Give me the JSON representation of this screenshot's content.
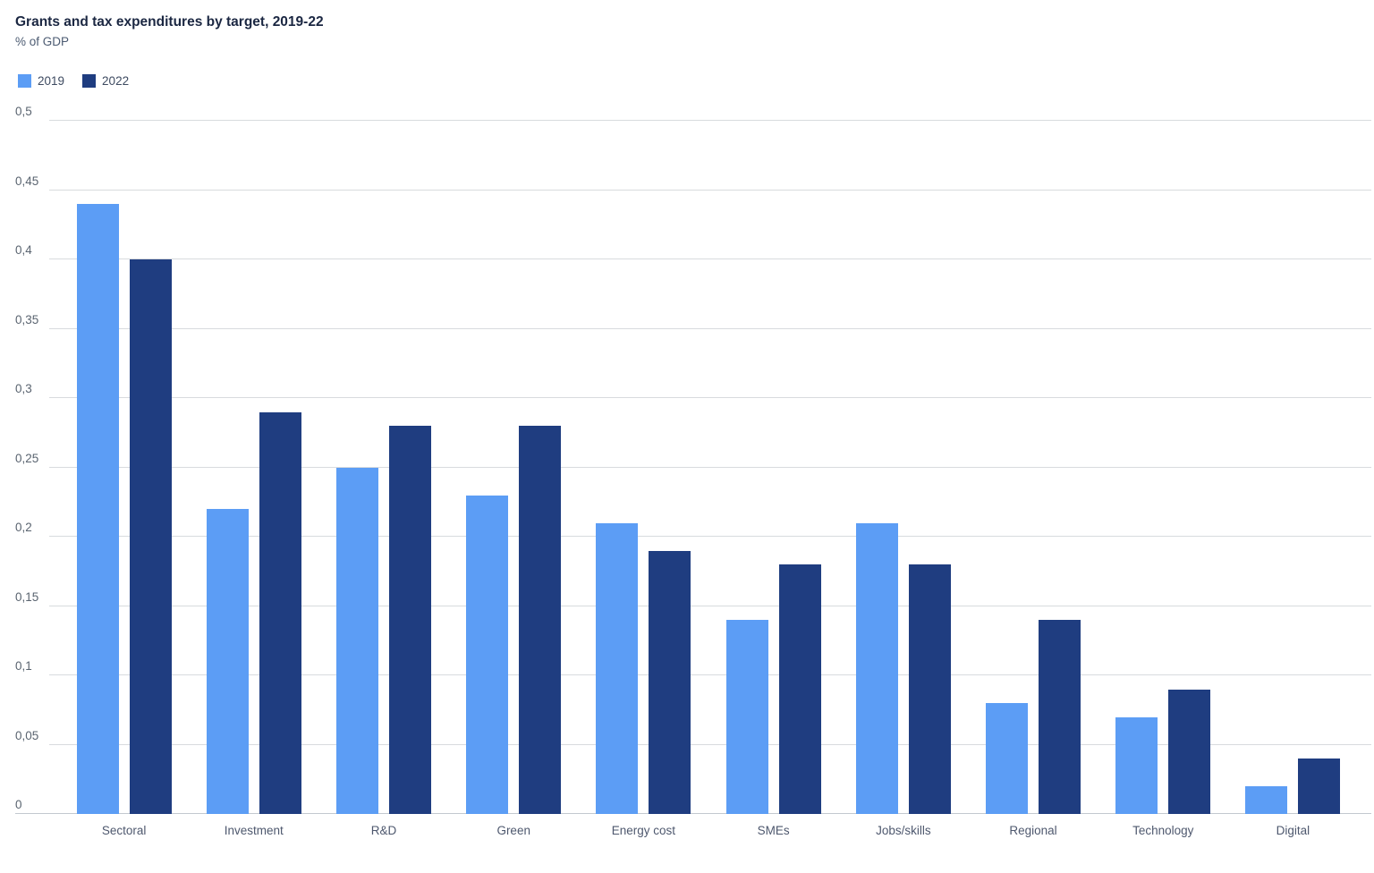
{
  "header": {
    "title": "Grants and tax expenditures by target, 2019-22",
    "subtitle": "% of GDP"
  },
  "legend": [
    {
      "label": "2019",
      "color": "#5C9DF5"
    },
    {
      "label": "2022",
      "color": "#1F3D80"
    }
  ],
  "chart_data": {
    "type": "bar",
    "title": "Grants and tax expenditures by target, 2019-22",
    "ylabel": "% of GDP",
    "xlabel": "",
    "categories": [
      "Sectoral",
      "Investment",
      "R&D",
      "Green",
      "Energy cost",
      "SMEs",
      "Jobs/skills",
      "Regional",
      "Technology",
      "Digital"
    ],
    "series": [
      {
        "name": "2019",
        "color": "#5C9DF5",
        "values": [
          0.44,
          0.22,
          0.25,
          0.23,
          0.21,
          0.14,
          0.21,
          0.08,
          0.07,
          0.02
        ]
      },
      {
        "name": "2022",
        "color": "#1F3D80",
        "values": [
          0.4,
          0.29,
          0.28,
          0.28,
          0.19,
          0.18,
          0.18,
          0.14,
          0.09,
          0.04
        ]
      }
    ],
    "ylim": [
      0,
      0.5
    ],
    "yticks": [
      {
        "label": "0",
        "value": 0
      },
      {
        "label": "0,05",
        "value": 0.05
      },
      {
        "label": "0,1",
        "value": 0.1
      },
      {
        "label": "0,15",
        "value": 0.15
      },
      {
        "label": "0,2",
        "value": 0.2
      },
      {
        "label": "0,25",
        "value": 0.25
      },
      {
        "label": "0,3",
        "value": 0.3
      },
      {
        "label": "0,35",
        "value": 0.35
      },
      {
        "label": "0,4",
        "value": 0.4
      },
      {
        "label": "0,45",
        "value": 0.45
      },
      {
        "label": "0,5",
        "value": 0.5
      }
    ],
    "decimal_separator": ",",
    "grid": true,
    "legend_position": "top-left"
  }
}
